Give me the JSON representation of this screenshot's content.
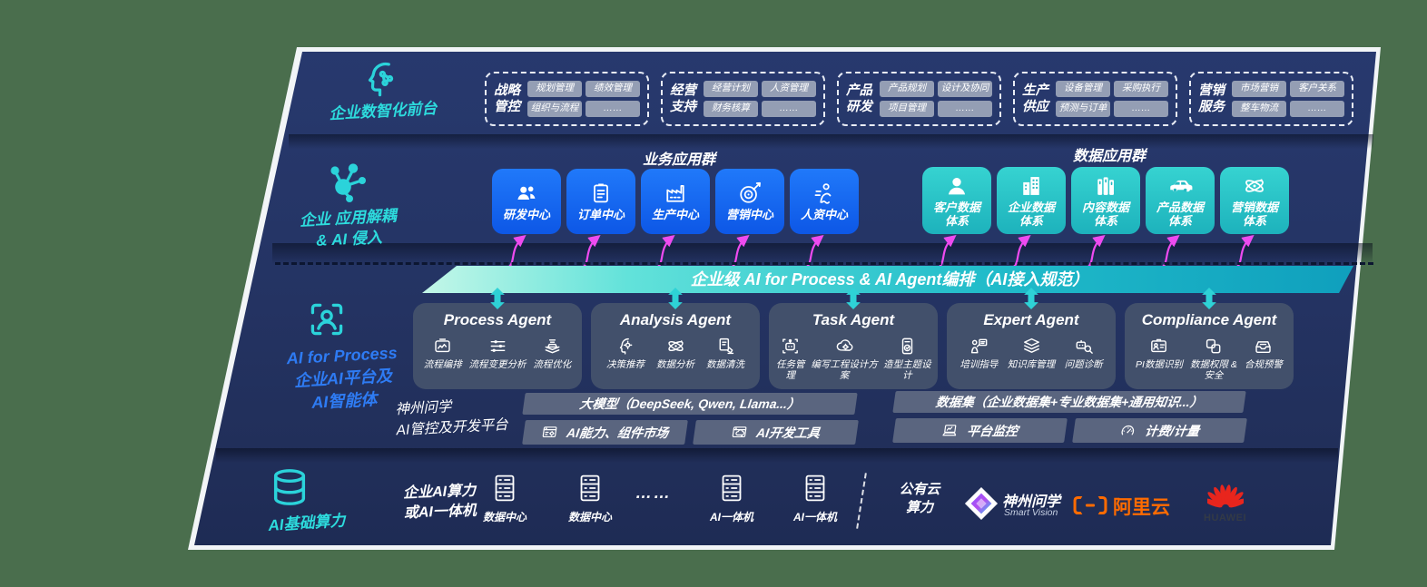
{
  "colors": {
    "cyan": "#2ddbdd",
    "blue": "#1f6df5",
    "teal": "#2cc6c9",
    "magenta": "#ee4bf0",
    "navy": "#243463",
    "orange": "#ff6b00",
    "huawei_red": "#e8251d"
  },
  "front_layer": {
    "label": "企业数智化前台",
    "groups": [
      {
        "title": "战略\n管控",
        "chips": [
          "规划管理",
          "绩效管理",
          "组织与流程",
          "……"
        ]
      },
      {
        "title": "经营\n支持",
        "chips": [
          "经营计划",
          "人资管理",
          "财务核算",
          "……"
        ]
      },
      {
        "title": "产品\n研发",
        "chips": [
          "产品规划",
          "设计及协同",
          "项目管理",
          "……"
        ]
      },
      {
        "title": "生产\n供应",
        "chips": [
          "设备管理",
          "采购执行",
          "预测与订单",
          "……"
        ]
      },
      {
        "title": "营销\n服务",
        "chips": [
          "市场营销",
          "客户关系",
          "整车物流",
          "……"
        ]
      }
    ]
  },
  "app_layer": {
    "label": "企业 应用解耦\n& AI 侵入",
    "business_group_title": "业务应用群",
    "data_group_title": "数据应用群",
    "business_tiles": [
      {
        "label": "研发中心",
        "icon": "team-icon"
      },
      {
        "label": "订单中心",
        "icon": "order-icon"
      },
      {
        "label": "生产中心",
        "icon": "factory-icon"
      },
      {
        "label": "营销中心",
        "icon": "target-icon"
      },
      {
        "label": "人资中心",
        "icon": "hr-icon"
      }
    ],
    "data_tiles": [
      {
        "label": "客户数据\n体系",
        "icon": "customer-icon"
      },
      {
        "label": "企业数据\n体系",
        "icon": "building-icon"
      },
      {
        "label": "内容数据\n体系",
        "icon": "content-icon"
      },
      {
        "label": "产品数据\n体系",
        "icon": "car-icon"
      },
      {
        "label": "营销数据\n体系",
        "icon": "atom-icon"
      }
    ]
  },
  "banner": {
    "text": "企业级 AI for Process & AI Agent编排（AI接入规范）"
  },
  "ai_layer": {
    "label": "AI for Process\n企业AI平台及\nAI智能体",
    "agents": [
      {
        "title": "Process Agent",
        "items": [
          {
            "label": "流程编排",
            "icon": "workflow-icon"
          },
          {
            "label": "流程变更分析",
            "icon": "sliders-icon"
          },
          {
            "label": "流程优化",
            "icon": "optimize-icon"
          }
        ]
      },
      {
        "title": "Analysis Agent",
        "items": [
          {
            "label": "决策推荐",
            "icon": "decision-icon"
          },
          {
            "label": "数据分析",
            "icon": "atom-icon"
          },
          {
            "label": "数据清洗",
            "icon": "clean-icon"
          }
        ]
      },
      {
        "title": "Task Agent",
        "items": [
          {
            "label": "任务管理",
            "icon": "robot-icon"
          },
          {
            "label": "编写工程设计方案",
            "icon": "cloud-design-icon"
          },
          {
            "label": "造型主题设计",
            "icon": "theme-design-icon"
          }
        ]
      },
      {
        "title": "Expert Agent",
        "items": [
          {
            "label": "培训指导",
            "icon": "training-icon"
          },
          {
            "label": "知识库管理",
            "icon": "layers-icon"
          },
          {
            "label": "问题诊断",
            "icon": "diagnose-icon"
          }
        ]
      },
      {
        "title": "Compliance Agent",
        "items": [
          {
            "label": "PI数据识别",
            "icon": "idcard-icon"
          },
          {
            "label": "数据权限 &\n安全",
            "icon": "permission-icon"
          },
          {
            "label": "合规预警",
            "icon": "alert-icon"
          }
        ]
      }
    ]
  },
  "platform": {
    "label": "神州问学\nAI管控及开发平台",
    "model_header": "大模型（DeepSeek, Qwen, Llama...）",
    "model_bars": [
      {
        "label": "AI能力、组件市场",
        "icon": "market-icon"
      },
      {
        "label": "AI开发工具",
        "icon": "devtool-icon"
      }
    ],
    "dataset_header": "数据集（企业数据集+专业数据集+通用知识...）",
    "dataset_bars": [
      {
        "label": "平台监控",
        "icon": "monitor-icon"
      },
      {
        "label": "计费/计量",
        "icon": "gauge-icon"
      }
    ]
  },
  "infra_layer": {
    "label": "AI基础算力",
    "compute_label": "企业AI算力\n或AI一体机",
    "servers": [
      "数据中心",
      "数据中心",
      "AI一体机",
      "AI一体机"
    ],
    "dots": "……",
    "public_cloud_label": "公有云\n算力",
    "vendors": {
      "szwx_name": "神州问学",
      "szwx_sub": "Smart Vision",
      "aliyun": "阿里云",
      "huawei": "HUAWEI"
    }
  }
}
